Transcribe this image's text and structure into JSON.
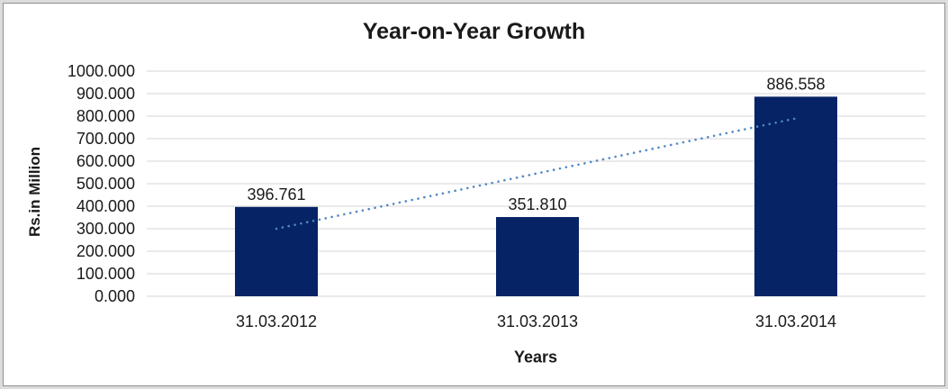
{
  "chart_data": {
    "type": "bar",
    "title": "Year-on-Year Growth",
    "xlabel": "Years",
    "ylabel": "Rs.in Million",
    "categories": [
      "31.03.2012",
      "31.03.2013",
      "31.03.2014"
    ],
    "values": [
      396.761,
      351.81,
      886.558
    ],
    "value_labels": [
      "396.761",
      "351.810",
      "886.558"
    ],
    "ylim": [
      0,
      1000
    ],
    "ytick_step": 100,
    "ytick_labels": [
      "0.000",
      "100.000",
      "200.000",
      "300.000",
      "400.000",
      "500.000",
      "600.000",
      "700.000",
      "800.000",
      "900.000",
      "1000.000"
    ],
    "grid": true,
    "legend_position": "none",
    "bar_color": "#062365",
    "gridline_color": "#d6d6d6",
    "trendline": {
      "type": "linear",
      "style": "dotted",
      "color": "#4f86c6",
      "start_value": 300,
      "end_value": 790
    }
  }
}
